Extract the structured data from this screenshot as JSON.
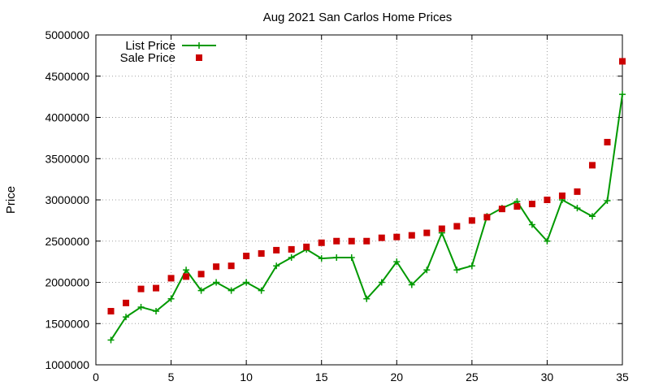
{
  "chart_data": {
    "type": "line",
    "title": "Aug 2021 San Carlos Home Prices",
    "xlabel": "",
    "ylabel": "Price",
    "xlim": [
      0,
      35
    ],
    "ylim": [
      1000000,
      5000000
    ],
    "xticks": [
      "0",
      "5",
      "10",
      "15",
      "20",
      "25",
      "30",
      "35"
    ],
    "yticks": [
      "1000000",
      "1500000",
      "2000000",
      "2500000",
      "3000000",
      "3500000",
      "4000000",
      "4500000",
      "5000000"
    ],
    "grid": true,
    "legend_position": "top-left",
    "x": [
      1,
      2,
      3,
      4,
      5,
      6,
      7,
      8,
      9,
      10,
      11,
      12,
      13,
      14,
      15,
      16,
      17,
      18,
      19,
      20,
      21,
      22,
      23,
      24,
      25,
      26,
      27,
      28,
      29,
      30,
      31,
      32,
      33,
      34,
      35
    ],
    "series": [
      {
        "name": "List Price",
        "style": "linespoints",
        "color": "#009900",
        "values": [
          1300000,
          1580000,
          1700000,
          1650000,
          1800000,
          2150000,
          1900000,
          2000000,
          1900000,
          2000000,
          1900000,
          2200000,
          2300000,
          2400000,
          2290000,
          2300000,
          2300000,
          1800000,
          2000000,
          2250000,
          1970000,
          2150000,
          2600000,
          2150000,
          2200000,
          2800000,
          2900000,
          2980000,
          2700000,
          2500000,
          3000000,
          2900000,
          2800000,
          2990000,
          4280000
        ]
      },
      {
        "name": "Sale Price",
        "style": "points",
        "color": "#cc0000",
        "values": [
          1650000,
          1750000,
          1920000,
          1930000,
          2050000,
          2070000,
          2100000,
          2190000,
          2200000,
          2320000,
          2350000,
          2390000,
          2400000,
          2430000,
          2480000,
          2500000,
          2500000,
          2500000,
          2540000,
          2550000,
          2570000,
          2600000,
          2650000,
          2680000,
          2750000,
          2790000,
          2890000,
          2920000,
          2950000,
          3000000,
          3050000,
          3100000,
          3420000,
          3700000,
          4680000
        ]
      }
    ]
  }
}
